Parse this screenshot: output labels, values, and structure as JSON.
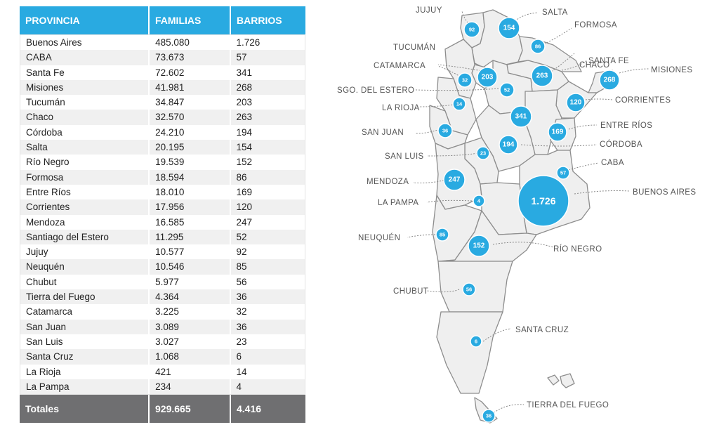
{
  "table": {
    "headers": {
      "province": "PROVINCIA",
      "families": "FAMILIAS",
      "barrios": "BARRIOS"
    },
    "rows": [
      {
        "province": "Buenos Aires",
        "families": "485.080",
        "barrios": "1.726"
      },
      {
        "province": "CABA",
        "families": "73.673",
        "barrios": "57"
      },
      {
        "province": "Santa Fe",
        "families": "72.602",
        "barrios": "341"
      },
      {
        "province": "Misiones",
        "families": "41.981",
        "barrios": "268"
      },
      {
        "province": "Tucumán",
        "families": "34.847",
        "barrios": "203"
      },
      {
        "province": "Chaco",
        "families": "32.570",
        "barrios": "263"
      },
      {
        "province": "Córdoba",
        "families": "24.210",
        "barrios": "194"
      },
      {
        "province": "Salta",
        "families": "20.195",
        "barrios": "154"
      },
      {
        "province": "Río Negro",
        "families": "19.539",
        "barrios": "152"
      },
      {
        "province": "Formosa",
        "families": "18.594",
        "barrios": "86"
      },
      {
        "province": "Entre Ríos",
        "families": "18.010",
        "barrios": "169"
      },
      {
        "province": "Corrientes",
        "families": "17.956",
        "barrios": "120"
      },
      {
        "province": "Mendoza",
        "families": "16.585",
        "barrios": "247"
      },
      {
        "province": "Santiago del Estero",
        "families": "11.295",
        "barrios": "52"
      },
      {
        "province": "Jujuy",
        "families": "10.577",
        "barrios": "92"
      },
      {
        "province": "Neuquén",
        "families": "10.546",
        "barrios": "85"
      },
      {
        "province": "Chubut",
        "families": "5.977",
        "barrios": "56"
      },
      {
        "province": "Tierra del Fuego",
        "families": "4.364",
        "barrios": "36"
      },
      {
        "province": "Catamarca",
        "families": "3.225",
        "barrios": "32"
      },
      {
        "province": "San Juan",
        "families": "3.089",
        "barrios": "36"
      },
      {
        "province": "San Luis",
        "families": "3.027",
        "barrios": "23"
      },
      {
        "province": "Santa Cruz",
        "families": "1.068",
        "barrios": "6"
      },
      {
        "province": "La Rioja",
        "families": "421",
        "barrios": "14"
      },
      {
        "province": "La Pampa",
        "families": "234",
        "barrios": "4"
      }
    ],
    "totals": {
      "label": "Totales",
      "families": "929.665",
      "barrios": "4.416"
    }
  },
  "map": {
    "accent_color": "#29aae1",
    "provinces": [
      {
        "label": "JUJUY",
        "value": "92"
      },
      {
        "label": "SALTA",
        "value": "154"
      },
      {
        "label": "FORMOSA",
        "value": "86"
      },
      {
        "label": "TUCUMÁN",
        "value": "203"
      },
      {
        "label": "CHACO",
        "value": "263"
      },
      {
        "label": "CATAMARCA",
        "value": "32"
      },
      {
        "label": "SANTA FE",
        "value": "341"
      },
      {
        "label": "MISIONES",
        "value": "268"
      },
      {
        "label": "SGO. DEL ESTERO",
        "value": "52"
      },
      {
        "label": "CORRIENTES",
        "value": "120"
      },
      {
        "label": "LA RIOJA",
        "value": "14"
      },
      {
        "label": "ENTRE RÍOS",
        "value": "169"
      },
      {
        "label": "SAN JUAN",
        "value": "36"
      },
      {
        "label": "CÓRDOBA",
        "value": "194"
      },
      {
        "label": "SAN LUIS",
        "value": "23"
      },
      {
        "label": "CABA",
        "value": "57"
      },
      {
        "label": "MENDOZA",
        "value": "247"
      },
      {
        "label": "BUENOS AIRES",
        "value": "1.726"
      },
      {
        "label": "LA PAMPA",
        "value": "4"
      },
      {
        "label": "NEUQUÉN",
        "value": "85"
      },
      {
        "label": "RÍO NEGRO",
        "value": "152"
      },
      {
        "label": "CHUBUT",
        "value": "56"
      },
      {
        "label": "SANTA CRUZ",
        "value": "6"
      },
      {
        "label": "TIERRA DEL FUEGO",
        "value": "36"
      }
    ]
  }
}
